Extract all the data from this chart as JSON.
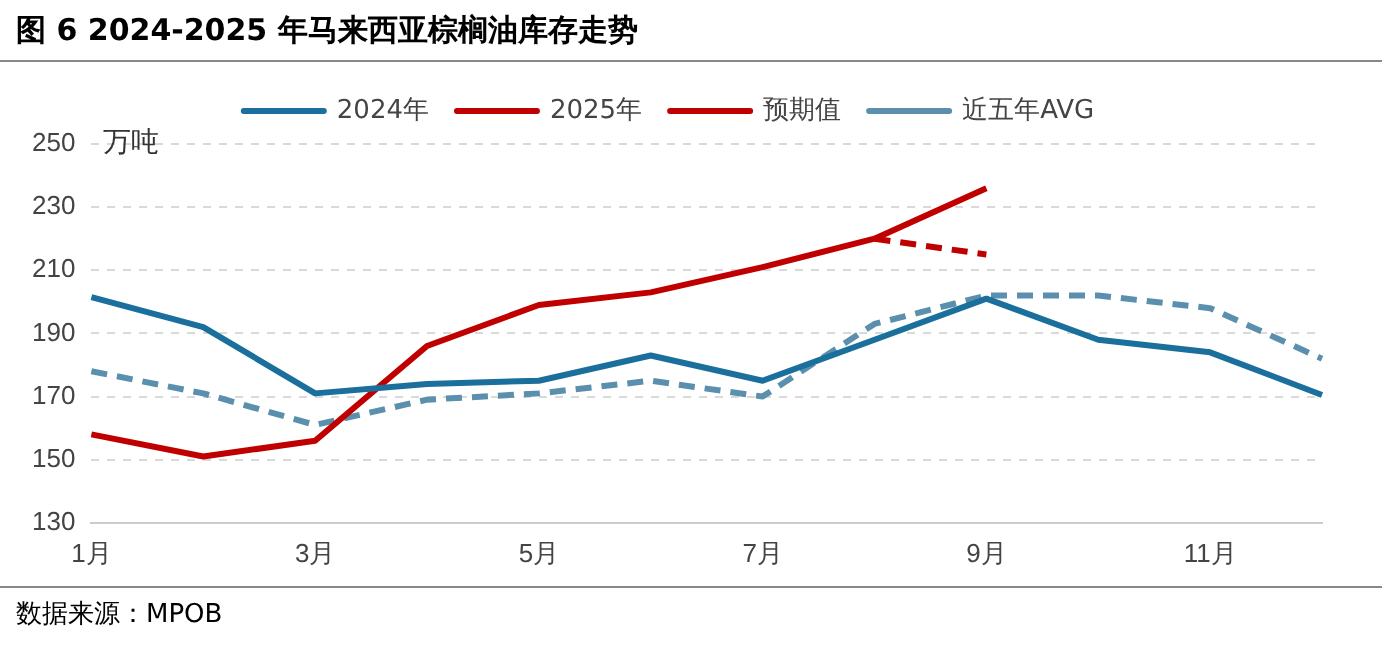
{
  "chart_data": {
    "type": "line",
    "title": "图 6 2024-2025 年马来西亚棕榈油库存走势",
    "ylabel": "万吨",
    "categories": [
      "1月",
      null,
      "3月",
      null,
      "5月",
      null,
      "7月",
      null,
      "9月",
      null,
      "11月",
      null
    ],
    "series": [
      {
        "name": "2024年",
        "color": "#1a6f9c",
        "line_style": "solid",
        "values": [
          201.5,
          192,
          171,
          174,
          175,
          183,
          175,
          188,
          201,
          188,
          184,
          170.5
        ]
      },
      {
        "name": "2025年",
        "color": "#c00000",
        "line_style": "solid",
        "values": [
          158,
          151,
          156,
          186,
          199,
          203,
          211,
          220,
          236,
          null,
          null,
          null
        ]
      },
      {
        "name": "预期值",
        "color": "#c00000",
        "line_style": "dashed",
        "values": [
          null,
          null,
          null,
          null,
          null,
          null,
          null,
          220,
          215,
          null,
          null,
          null
        ]
      },
      {
        "name": "近五年AVG",
        "color": "#5b8fae",
        "line_style": "dashed",
        "values": [
          178,
          171,
          161,
          169,
          171,
          175,
          170,
          193,
          202,
          202,
          198,
          182
        ]
      }
    ],
    "ylim": [
      130,
      250
    ],
    "yticks": [
      130,
      150,
      170,
      190,
      210,
      230,
      250
    ],
    "grid": "y",
    "legend": "top",
    "marker": "none",
    "annotations": [
      "数据来源：MPOB"
    ]
  }
}
